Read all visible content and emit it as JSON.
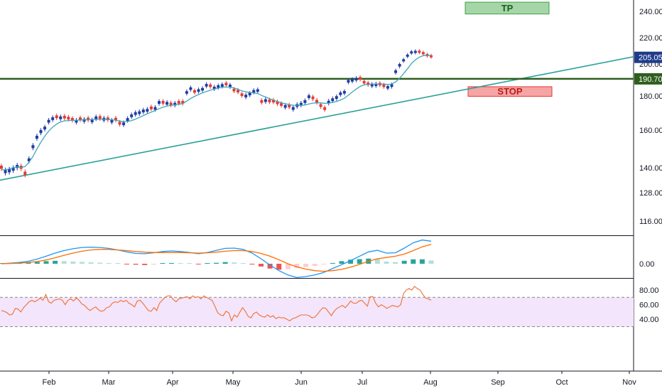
{
  "chart_data": {
    "type": "candlestick",
    "price_axis": {
      "ticks": [
        "240.00",
        "220.00",
        "200.00",
        "180.00",
        "160.00",
        "140.00",
        "128.00",
        "116.00"
      ],
      "tick_values": [
        240,
        220,
        200,
        180,
        160,
        140,
        128,
        116
      ],
      "last_price_label": "205.05",
      "last_price": 205.05,
      "level_label": "190.70",
      "level": 190.7,
      "colors": {
        "last_price_tag": "#1e3a8a",
        "level_tag": "#2e5e1e"
      }
    },
    "x_axis": {
      "labels": [
        "Feb",
        "Mar",
        "Apr",
        "May",
        "Jun",
        "Jul",
        "Aug",
        "Sep",
        "Oct",
        "Nov"
      ]
    },
    "candles_close": [
      139.5,
      139,
      139.4,
      140.2,
      141.5,
      139.5,
      136.5,
      145,
      152,
      157,
      160,
      162,
      166,
      167.5,
      167,
      168,
      166.8,
      166.2,
      165.5,
      166,
      165.8,
      166.5,
      165.7,
      166.2,
      168,
      166.6,
      167.2,
      165.8,
      166,
      165.6,
      163.2,
      164.5,
      167,
      169.2,
      170.5,
      171,
      172,
      172.4,
      172.2,
      173.5,
      177,
      175.5,
      176.5,
      174.5,
      176,
      175.5,
      175.5,
      183,
      185.4,
      182,
      184.2,
      185,
      187.5,
      185.6,
      185.8,
      186.7,
      187.4,
      186.7,
      187.1,
      182.9,
      182.2,
      180,
      180.8,
      182,
      183.7,
      184.2,
      176,
      178.1,
      176.3,
      176.2,
      175.2,
      174.2,
      174.7,
      173.3,
      173.5,
      175.2,
      176,
      177.5,
      180.4,
      178.1,
      176.1,
      173.6,
      171.8,
      177.2,
      178.6,
      179.9,
      182.2,
      183.1,
      190,
      190.6,
      191.3,
      190.2,
      187.8,
      186.8,
      187.6,
      187.8,
      186.6,
      185.6,
      186.2,
      187.3,
      196,
      200,
      203.6,
      207.1,
      209.6,
      210,
      208.5,
      207.4,
      205.9,
      205.05
    ],
    "candles_up": [
      false,
      true,
      true,
      true,
      true,
      false,
      false,
      true,
      true,
      true,
      true,
      true,
      true,
      true,
      false,
      true,
      false,
      false,
      false,
      true,
      false,
      true,
      false,
      true,
      true,
      false,
      true,
      false,
      true,
      false,
      false,
      true,
      true,
      true,
      true,
      true,
      true,
      true,
      false,
      true,
      true,
      false,
      true,
      false,
      true,
      false,
      false,
      true,
      true,
      false,
      true,
      true,
      true,
      false,
      true,
      true,
      true,
      false,
      true,
      false,
      false,
      false,
      true,
      true,
      true,
      true,
      false,
      true,
      false,
      false,
      false,
      false,
      true,
      false,
      true,
      true,
      true,
      true,
      true,
      false,
      false,
      false,
      false,
      true,
      true,
      true,
      true,
      true,
      true,
      true,
      true,
      false,
      false,
      false,
      true,
      true,
      false,
      false,
      true,
      true,
      true,
      true,
      true,
      true,
      true,
      true,
      false,
      false,
      false,
      false
    ],
    "moving_average": [
      139,
      139,
      139.5,
      140,
      140.5,
      140.3,
      140.6,
      143,
      146,
      150,
      153.6,
      156.8,
      159.5,
      161.8,
      163.5,
      164.8,
      165.4,
      165.6,
      165.7,
      165.8,
      165.9,
      166,
      166.1,
      166.2,
      166.3,
      166.3,
      166.4,
      166.3,
      166.1,
      165.8,
      165.3,
      165,
      165.1,
      165.6,
      166.4,
      167.4,
      168.5,
      169.6,
      170.5,
      171.5,
      172.6,
      173.4,
      174.1,
      174.4,
      174.8,
      175.1,
      175.6,
      177,
      178.5,
      179.8,
      180.9,
      181.9,
      182.8,
      183.6,
      184.3,
      184.9,
      185.5,
      185.6,
      185.5,
      185,
      184.2,
      183.2,
      182.6,
      182.2,
      181.9,
      181.5,
      180.3,
      179.4,
      178.4,
      177.6,
      176.8,
      176,
      175.5,
      174.9,
      174.6,
      174.5,
      174.5,
      174.7,
      175.3,
      175.8,
      176,
      175.9,
      175.7,
      175.8,
      176.2,
      176.8,
      177.6,
      178.7,
      180.5,
      182.5,
      184.3,
      186,
      186.9,
      187.3,
      187.5,
      187.5,
      187.5,
      187.4,
      187.2,
      187.4,
      188.8,
      191.1,
      193.9,
      197,
      200.3,
      203.2,
      205.2,
      206.3,
      206.6,
      206.5
    ],
    "trendline": {
      "start": 134,
      "end": 205.5
    },
    "boxes": [
      {
        "label": "TP",
        "price_top": 247,
        "price_bottom": 238,
        "fill": "#a5d6a7",
        "border": "#43a047",
        "text_color": "#1b5e20"
      },
      {
        "label": "STOP",
        "price_top": 185.8,
        "price_bottom": 179.8,
        "fill": "#f6a5a5",
        "border": "#e53935",
        "text_color": "#b71c1c"
      }
    ],
    "macd": {
      "zero_label": "0.00",
      "macd_line": [
        0,
        0.2,
        0.4,
        0.8,
        1.5,
        2.4,
        3.4,
        4.2,
        4.8,
        5.2,
        5.3,
        5.2,
        4.9,
        4.4,
        3.8,
        3.3,
        3.2,
        3.5,
        3.9,
        4.1,
        3.9,
        3.6,
        3.2,
        3.6,
        4.3,
        4.9,
        5.0,
        4.6,
        3.4,
        1.6,
        -0.4,
        -2.2,
        -3.6,
        -4.4,
        -4.1,
        -3.6,
        -2.8,
        -1.5,
        -0.3,
        1.0,
        2.4,
        3.8,
        4.3,
        3.4,
        3.5,
        5.0,
        6.7,
        7.6,
        7.2
      ],
      "signal_line": [
        0,
        0.1,
        0.2,
        0.4,
        0.7,
        1.2,
        1.9,
        2.7,
        3.4,
        4.0,
        4.4,
        4.6,
        4.6,
        4.4,
        4.2,
        3.9,
        3.7,
        3.6,
        3.6,
        3.6,
        3.6,
        3.5,
        3.4,
        3.5,
        3.7,
        4.0,
        4.2,
        4.2,
        3.9,
        3.3,
        2.4,
        1.3,
        0,
        -1.0,
        -1.7,
        -2.2,
        -2.4,
        -2.2,
        -1.8,
        -1.1,
        -0.2,
        0.8,
        1.6,
        2.0,
        2.4,
        3.1,
        4.2,
        5.4,
        6.2
      ],
      "histogram": [
        0,
        0.3,
        0.5,
        0.8,
        1.0,
        1.4,
        1.6,
        1.4,
        1.2,
        1.0,
        0.8,
        0.6,
        0.4,
        0.1,
        -0.2,
        -0.5,
        -0.7,
        -0.5,
        0.1,
        0.4,
        0.3,
        0.1,
        -0.2,
        0.1,
        0.5,
        0.9,
        0.7,
        0.3,
        -0.4,
        -1.5,
        -2.6,
        -3.2,
        -3.0,
        -2.4,
        -1.8,
        -1.2,
        -0.4,
        0.4,
        1.4,
        2.2,
        2.5,
        2.8,
        2.6,
        1.2,
        0.9,
        1.6,
        2.4,
        2.4,
        1.8
      ]
    },
    "rsi": {
      "ticks": [
        "80.00",
        "60.00",
        "40.00"
      ],
      "tick_values": [
        80,
        60,
        40
      ],
      "band_upper": 70,
      "band_lower": 30,
      "values": [
        52,
        51,
        49,
        46,
        47,
        55,
        54,
        50,
        56,
        60,
        64,
        66,
        64,
        66,
        69,
        66,
        74,
        64,
        62,
        66,
        67,
        68,
        66,
        60,
        66,
        68,
        65,
        69,
        66,
        61,
        59,
        55,
        52,
        55,
        57,
        53,
        51,
        52,
        56,
        57,
        62,
        64,
        63,
        66,
        64,
        66,
        62,
        60,
        57,
        65,
        66,
        62,
        57,
        52,
        51,
        56,
        52,
        62,
        66,
        70,
        72,
        72,
        67,
        64,
        68,
        69,
        70,
        71,
        68,
        72,
        70,
        71,
        68,
        72,
        70,
        68,
        66,
        58,
        49,
        46,
        45,
        51,
        49,
        38,
        46,
        43,
        50,
        56,
        51,
        44,
        42,
        48,
        50,
        46,
        44,
        43,
        46,
        43,
        45,
        41,
        43,
        42,
        42,
        40,
        38,
        41,
        42,
        44,
        46,
        46,
        46,
        45,
        42,
        43,
        47,
        52,
        56,
        55,
        50,
        45,
        51,
        55,
        57,
        59,
        56,
        60,
        65,
        62,
        62,
        65,
        66,
        62,
        58,
        71,
        71,
        62,
        57,
        60,
        58,
        55,
        57,
        59,
        58,
        57,
        60,
        75,
        80,
        82,
        80,
        85,
        82,
        80,
        74,
        69,
        68,
        66
      ]
    }
  }
}
